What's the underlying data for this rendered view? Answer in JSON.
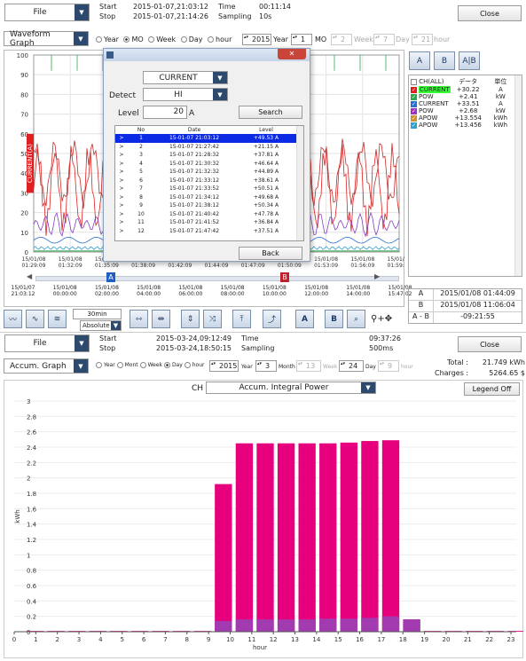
{
  "top": {
    "file_label": "File",
    "start_label": "Start",
    "stop_label": "Stop",
    "start_value": "2015-01-07,21:03:12",
    "stop_value": "2015-01-07,21:14:26",
    "time_label": "Time",
    "sampling_label": "Sampling",
    "time_value": "00:11:14",
    "sampling_value": "10s",
    "close_label": "Close",
    "graph_select": "Waveform Graph",
    "radios": [
      "Year",
      "MO",
      "Week",
      "Day",
      "hour"
    ],
    "selected_radio": "MO",
    "spin_year": "2015",
    "spin_year_unit": "Year",
    "spin_mo": "1",
    "spin_mo_unit": "MO",
    "spin_week": "2",
    "spin_week_unit": "Week",
    "spin_day": "7",
    "spin_day_unit": "Day",
    "spin_hour": "21",
    "spin_hour_unit": "hour",
    "y_ticks": [
      "100",
      "90",
      "80",
      "70",
      "60",
      "50",
      "40",
      "30",
      "20",
      "10",
      "0"
    ],
    "y_axis_label": "CURRENT(A)",
    "x_ticks_upper": [
      "15/01/08\n01:29:09",
      "15/01/08\n01:32:09",
      "15/01/08\n01:35:09",
      "15/01/08\n01:38:09",
      "15/01/08\n01:42:09",
      "15/01/08\n01:44:09",
      "15/01/08\n01:47:09",
      "15/01/08\n01:50:09",
      "15/01/08\n01:53:09",
      "15/01/08\n01:56:09",
      "15/01/08\n01:59:09"
    ],
    "x_ticks_lower": [
      "15/01/07\n21:03:12",
      "15/01/08\n00:00:00",
      "15/01/08\n02:00:00",
      "15/01/08\n04:00:00",
      "15/01/08\n06:00:00",
      "15/01/08\n08:00:00",
      "15/01/08\n10:00:00",
      "15/01/08\n12:00:00",
      "15/01/08\n14:00:00",
      "15/01/08\n15:47:02"
    ],
    "marker_a": "A",
    "marker_b": "B",
    "view_buttons": [
      "A",
      "B",
      "A|B"
    ],
    "legend_headers": [
      "CH(ALL)",
      "データ",
      "単位"
    ],
    "legend_rows": [
      {
        "name": "CURRENT",
        "value": "+30.22",
        "unit": "A",
        "color": "#e02020",
        "highlight": true
      },
      {
        "name": "POW",
        "value": "+2.41",
        "unit": "kW",
        "color": "#2aa84a",
        "highlight": false
      },
      {
        "name": "CURRENT",
        "value": "+33.51",
        "unit": "A",
        "color": "#2a6fd0",
        "highlight": false
      },
      {
        "name": "POW",
        "value": "+2.68",
        "unit": "kW",
        "color": "#a030c0",
        "highlight": false
      },
      {
        "name": "APOW",
        "value": "+13.554",
        "unit": "kWh",
        "color": "#d09030",
        "highlight": false
      },
      {
        "name": "APOW",
        "value": "+13.456",
        "unit": "kWh",
        "color": "#30a0d0",
        "highlight": false
      }
    ],
    "cursor_table": [
      {
        "label": "A",
        "value": "2015/01/08 01:44:09"
      },
      {
        "label": "B",
        "value": "2015/01/08 11:06:04"
      },
      {
        "label": "A - B",
        "value": "-09:21:55"
      }
    ],
    "time_span": "30min",
    "time_mode": "Absolute"
  },
  "dialog": {
    "ch_label": "CH",
    "ch_value": "CURRENT",
    "detect_label": "Detect",
    "detect_value": "HI",
    "level_label": "Level",
    "level_value": "20",
    "level_unit": "A",
    "search_label": "Search",
    "back_label": "Back",
    "table_headers": [
      "No",
      "Date",
      "Level"
    ],
    "rows": [
      {
        "no": "1",
        "date": "15-01-07 21:03:12",
        "level": "+49.53 A",
        "selected": true
      },
      {
        "no": "2",
        "date": "15-01-07 21:27:42",
        "level": "+21.15 A"
      },
      {
        "no": "3",
        "date": "15-01-07 21:28:32",
        "level": "+37.81 A"
      },
      {
        "no": "4",
        "date": "15-01-07 21:30:32",
        "level": "+46.64 A"
      },
      {
        "no": "5",
        "date": "15-01-07 21:32:32",
        "level": "+44.89 A"
      },
      {
        "no": "6",
        "date": "15-01-07 21:33:12",
        "level": "+38.61 A"
      },
      {
        "no": "7",
        "date": "15-01-07 21:33:52",
        "level": "+50.51 A"
      },
      {
        "no": "8",
        "date": "15-01-07 21:34:12",
        "level": "+49.68 A"
      },
      {
        "no": "9",
        "date": "15-01-07 21:38:12",
        "level": "+50.34 A"
      },
      {
        "no": "10",
        "date": "15-01-07 21:40:42",
        "level": "+47.78 A"
      },
      {
        "no": "11",
        "date": "15-01-07 21:41:52",
        "level": "+36.84 A"
      },
      {
        "no": "12",
        "date": "15-01-07 21:47:42",
        "level": "+37.51 A"
      }
    ]
  },
  "bottom": {
    "file_label": "File",
    "start_label": "Start",
    "stop_label": "Stop",
    "start_value": "2015-03-24,09:12:49",
    "stop_value": "2015-03-24,18:50:15",
    "time_label": "Time",
    "sampling_label": "Sampling",
    "time_value": "09:37:26",
    "sampling_value": "500ms",
    "close_label": "Close",
    "graph_select": "Accum. Graph",
    "radios": [
      "Year",
      "Mont",
      "Week",
      "Day",
      "hour"
    ],
    "selected_radio": "Day",
    "spin_year": "2015",
    "spin_year_unit": "Year",
    "spin_month": "3",
    "spin_month_unit": "Month",
    "spin_week": "13",
    "spin_week_unit": "Week",
    "spin_day": "24",
    "spin_day_unit": "Day",
    "spin_hour": "9",
    "spin_hour_unit": "hour",
    "total_label": "Total :",
    "total_value": "21.749 kWh",
    "charges_label": "Charges :",
    "charges_value": "5264.65 $",
    "ch_label": "CH",
    "ch_value": "Accum. Integral Power",
    "legend_off_label": "Legend Off"
  },
  "chart_data": {
    "type": "bar",
    "title": "",
    "xlabel": "hour",
    "ylabel": "kWh",
    "ylim": [
      0,
      3
    ],
    "yticks": [
      "0",
      "0.2",
      "0.4",
      "0.6",
      "0.8",
      "1",
      "1.2",
      "1.4",
      "1.6",
      "1.8",
      "2",
      "2.2",
      "2.4",
      "2.6",
      "2.8",
      "3"
    ],
    "categories": [
      "0",
      "1",
      "2",
      "3",
      "4",
      "5",
      "6",
      "7",
      "8",
      "9",
      "10",
      "11",
      "12",
      "13",
      "14",
      "15",
      "16",
      "17",
      "18",
      "19",
      "20",
      "21",
      "22",
      "23"
    ],
    "series": [
      {
        "values": [
          0.01,
          0.01,
          0.01,
          0.01,
          0.01,
          0.01,
          0.01,
          0.01,
          0.01,
          1.92,
          2.45,
          2.45,
          2.45,
          2.45,
          2.45,
          2.46,
          2.48,
          2.49,
          0.16,
          0.01,
          0.01,
          0.01,
          0.01,
          0.01
        ],
        "color": "#e6007e"
      },
      {
        "values": [
          0,
          0,
          0,
          0,
          0,
          0,
          0,
          0,
          0,
          0.14,
          0.16,
          0.16,
          0.16,
          0.16,
          0.17,
          0.17,
          0.18,
          0.2,
          0.16,
          0,
          0,
          0,
          0,
          0
        ],
        "color": "#a23bb0"
      }
    ],
    "grid": true
  }
}
